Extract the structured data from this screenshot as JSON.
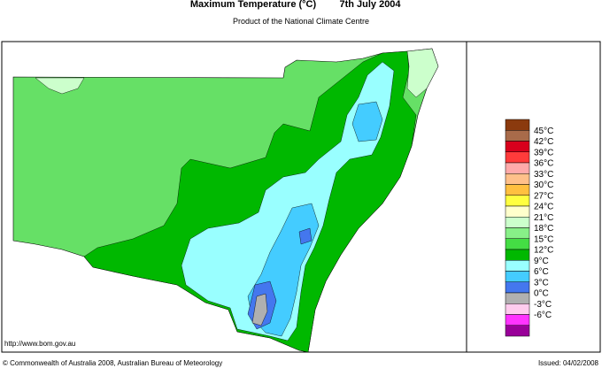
{
  "header": {
    "title": "Maximum Temperature (°C)",
    "date": "7th July 2004",
    "subtitle": "Product of the National Climate Centre"
  },
  "legend": {
    "labels": [
      "45°C",
      "42°C",
      "39°C",
      "36°C",
      "33°C",
      "30°C",
      "27°C",
      "24°C",
      "21°C",
      "18°C",
      "15°C",
      "12°C",
      "9°C",
      "6°C",
      "3°C",
      "0°C",
      "-3°C",
      "-6°C"
    ],
    "colors": [
      "#8b3a0e",
      "#a86b4a",
      "#d8001c",
      "#ff3b3b",
      "#ffaaaa",
      "#ffc08a",
      "#ffc040",
      "#ffff40",
      "#ffffcc",
      "#ccffcc",
      "#88f088",
      "#44dd44",
      "#00b800",
      "#99ffff",
      "#44ccff",
      "#4477ee",
      "#b0b0b0",
      "#ffccee",
      "#ff33ff",
      "#990099"
    ]
  },
  "footer": {
    "url": "http://www.bom.gov.au",
    "copyright": "© Commonwealth of Australia 2008, Australian Bureau of Meteorology",
    "issued": "Issued: 04/02/2008"
  }
}
